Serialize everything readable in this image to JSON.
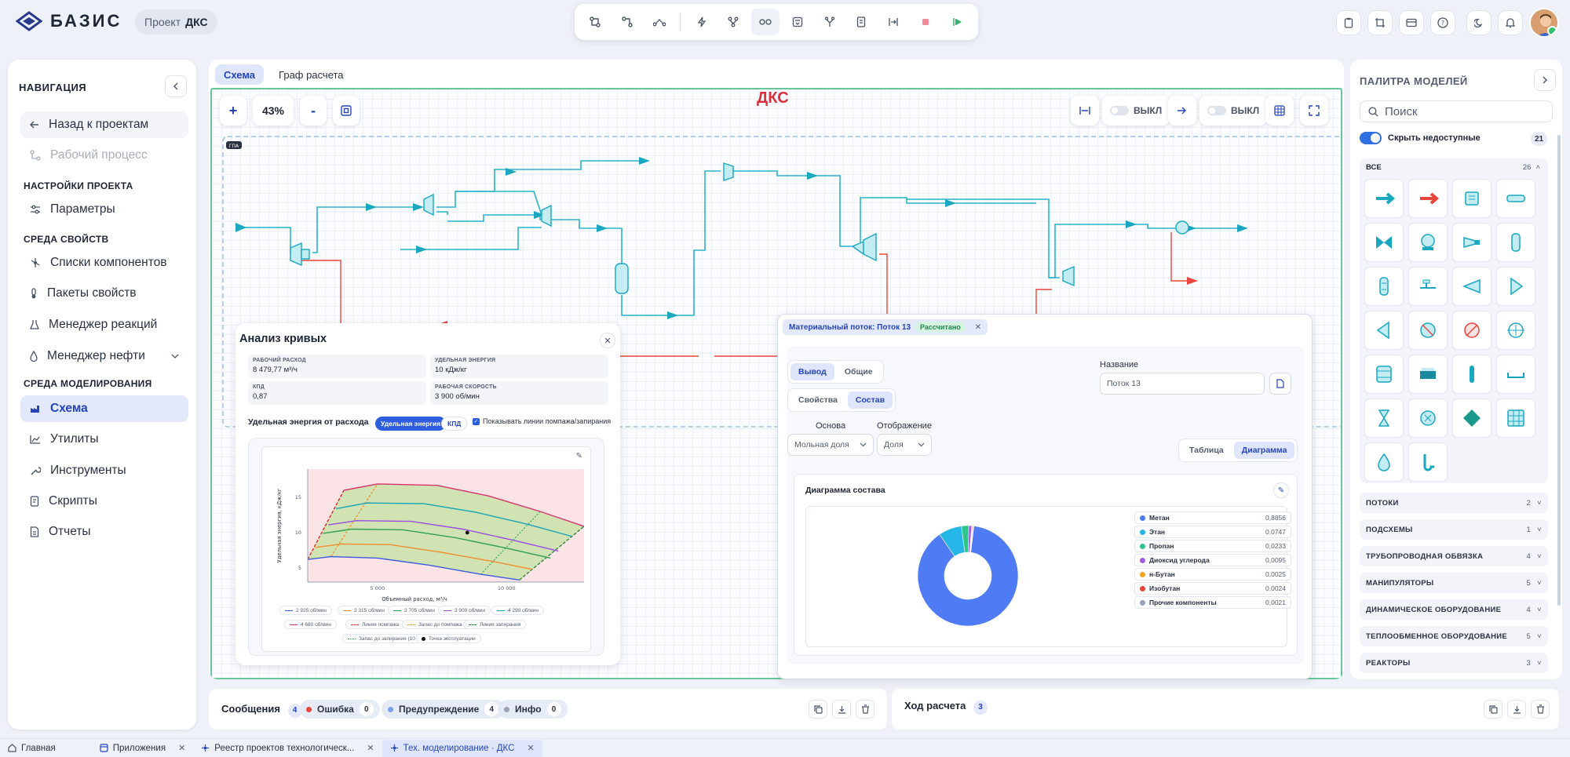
{
  "app": {
    "logo_text": "БАЗИС",
    "project_label": "Проект",
    "project_name": "ДКС"
  },
  "toolbar": {
    "icons": [
      "connect-node-icon",
      "branch-icon",
      "path-icon",
      "lightning-icon",
      "hierarchy-icon",
      "link-icon",
      "screen-icon",
      "fork-icon",
      "document-icon",
      "step-icon",
      "stop-icon",
      "run-icon"
    ]
  },
  "header_icons": [
    "clipboard-icon",
    "crop-icon",
    "card-icon",
    "help-icon",
    "moon-icon",
    "bell-icon"
  ],
  "nav": {
    "title": "НАВИГАЦИЯ",
    "back": "Назад к проектам",
    "workflow": "Рабочий процесс",
    "sec_project": "НАСТРОЙКИ ПРОЕКТА",
    "params": "Параметры",
    "sec_props": "СРЕДА СВОЙСТВ",
    "components": "Списки компонентов",
    "packages": "Пакеты свойств",
    "reactions": "Менеджер реакций",
    "oil": "Менеджер нефти",
    "sec_model": "СРЕДА МОДЕЛИРОВАНИЯ",
    "scheme": "Схема",
    "utils": "Утилиты",
    "tools": "Инструменты",
    "scripts": "Скрипты",
    "reports": "Отчеты"
  },
  "canvas": {
    "tabs": [
      "Схема",
      "Граф расчета"
    ],
    "zoom": "43%",
    "zoom_in": "+",
    "zoom_out": "-",
    "title": "ДКС",
    "toggle1": "ВЫКЛ",
    "toggle2": "ВЫКЛ",
    "group_tag": "ГПА"
  },
  "curves": {
    "title": "Анализ кривых",
    "kpis": [
      {
        "k": "РАБОЧИЙ РАСХОД",
        "v": "8 479,77 м³/ч"
      },
      {
        "k": "УДЕЛЬНАЯ ЭНЕРГИЯ",
        "v": "10 кДж/кг"
      },
      {
        "k": "КПД",
        "v": "0,87"
      },
      {
        "k": "РАБОЧАЯ СКОРОСТЬ",
        "v": "3 900 об/мин"
      }
    ],
    "subtitle": "Удельная энергия от расхода",
    "btn_energy": "Удельная энергия",
    "btn_kpd": "КПД",
    "checkbox": "Показывать линии помпажа/запирания"
  },
  "chart_data": {
    "type": "line",
    "title": "",
    "xlabel": "Объемный расход, м³/ч",
    "ylabel": "Удельная энергия, кДж/кг",
    "x_ticks": [
      "5 000",
      "10 000"
    ],
    "y_ticks": [
      "5",
      "10",
      "15"
    ],
    "xlim": [
      2300,
      13000
    ],
    "ylim": [
      3,
      19
    ],
    "series": [
      {
        "name": "2 925 об/мин",
        "color": "#3b5bdb",
        "points": [
          [
            2300,
            6.2
          ],
          [
            3200,
            6.6
          ],
          [
            5000,
            6.4
          ],
          [
            7000,
            5.4
          ],
          [
            9000,
            4.1
          ],
          [
            10500,
            3.3
          ]
        ]
      },
      {
        "name": "3 315 об/мин",
        "color": "#f08c2e",
        "points": [
          [
            2600,
            7.9
          ],
          [
            3600,
            8.4
          ],
          [
            5500,
            8.3
          ],
          [
            7500,
            7.2
          ],
          [
            9500,
            5.9
          ],
          [
            11000,
            4.8
          ]
        ]
      },
      {
        "name": "3 705 об/мин",
        "color": "#2fa14f",
        "points": [
          [
            2900,
            9.9
          ],
          [
            4000,
            10.5
          ],
          [
            6000,
            10.4
          ],
          [
            8000,
            9.3
          ],
          [
            10000,
            7.8
          ],
          [
            11700,
            6.4
          ]
        ]
      },
      {
        "name": "3 900 об/мин",
        "color": "#9b4de0",
        "points": [
          [
            3100,
            11.1
          ],
          [
            4200,
            11.7
          ],
          [
            6300,
            11.6
          ],
          [
            8300,
            10.5
          ],
          [
            10300,
            8.9
          ],
          [
            12000,
            7.4
          ]
        ]
      },
      {
        "name": "4 290 об/мин",
        "color": "#17a2b8",
        "points": [
          [
            3400,
            13.4
          ],
          [
            4600,
            14.2
          ],
          [
            6800,
            14.1
          ],
          [
            8800,
            12.9
          ],
          [
            10800,
            11.2
          ],
          [
            12500,
            9.5
          ]
        ]
      },
      {
        "name": "4 680 об/мин",
        "color": "#d6336c",
        "points": [
          [
            3700,
            16.0
          ],
          [
            5000,
            16.9
          ],
          [
            7300,
            16.7
          ],
          [
            9300,
            15.2
          ],
          [
            11300,
            13.0
          ],
          [
            13000,
            10.9
          ]
        ]
      }
    ],
    "operating_point": {
      "x": 8479.77,
      "y": 10
    },
    "legend": [
      "2 925 об/мин",
      "3 315 об/мин",
      "3 705 об/мин",
      "3 900 об/мин",
      "4 290 об/мин",
      "4 680 об/мин",
      "Линия помпажа",
      "Запас до помпажа (10 %)",
      "Линия запирания",
      "Запас до запирания (10 %)",
      "Точка эксплуатации"
    ]
  },
  "stream": {
    "tab": "Материальный поток: Поток 13",
    "badge": "Рассчитано",
    "seg1": [
      "Вывод",
      "Общие"
    ],
    "seg2": [
      "Свойства",
      "Состав"
    ],
    "name_label": "Название",
    "name_value": "Поток 13",
    "basis_label": "Основа",
    "basis_value": "Мольная доля",
    "display_label": "Отображение",
    "display_value": "Доля",
    "view": [
      "Таблица",
      "Диаграмма"
    ],
    "diagram_title": "Диаграмма состава"
  },
  "composition": {
    "type": "pie",
    "items": [
      {
        "name": "Метан",
        "value": "0,8856",
        "v": 0.8856,
        "color": "#4f7cf5"
      },
      {
        "name": "Этан",
        "value": "0,0747",
        "v": 0.0747,
        "color": "#26b6e8"
      },
      {
        "name": "Пропан",
        "value": "0,0233",
        "v": 0.0233,
        "color": "#2fc48a"
      },
      {
        "name": "Диоксид углерода",
        "value": "0,0095",
        "v": 0.0095,
        "color": "#a35de0"
      },
      {
        "name": "н-Бутан",
        "value": "0,0025",
        "v": 0.0025,
        "color": "#f5a623"
      },
      {
        "name": "Изобутан",
        "value": "0,0024",
        "v": 0.0024,
        "color": "#e8453c"
      },
      {
        "name": "Прочие компоненты",
        "value": "0,0021",
        "v": 0.0021,
        "color": "#9aa3b5"
      }
    ]
  },
  "messages": {
    "title": "Сообщения",
    "count": "4",
    "error": "Ошибка",
    "error_count": "0",
    "warning": "Предупреждение",
    "warning_count": "4",
    "info": "Инфо",
    "info_count": "0",
    "calc_title": "Ход расчета",
    "calc_count": "3"
  },
  "palette": {
    "title": "ПАЛИТРА МОДЕЛЕЙ",
    "search_placeholder": "Поиск",
    "hide_label": "Скрыть недоступные",
    "hide_count": "21",
    "all_label": "ВСЕ",
    "all_count": "26",
    "categories": [
      {
        "name": "ПОТОКИ",
        "count": "2"
      },
      {
        "name": "ПОДСХЕМЫ",
        "count": "1"
      },
      {
        "name": "ТРУБОПРОВОДНАЯ ОБВЯЗКА",
        "count": "4"
      },
      {
        "name": "МАНИПУЛЯТОРЫ",
        "count": "5"
      },
      {
        "name": "ДИНАМИЧЕСКОЕ ОБОРУДОВАНИЕ",
        "count": "4"
      },
      {
        "name": "ТЕПЛООБМЕННОЕ ОБОРУДОВАНИЕ",
        "count": "5"
      },
      {
        "name": "РЕАКТОРЫ",
        "count": "3"
      }
    ]
  },
  "taskbar": [
    {
      "label": "Главная"
    },
    {
      "label": "Приложения"
    },
    {
      "label": "Реестр проектов технологическ..."
    },
    {
      "label": "Тех. моделирование · ДКС"
    }
  ]
}
